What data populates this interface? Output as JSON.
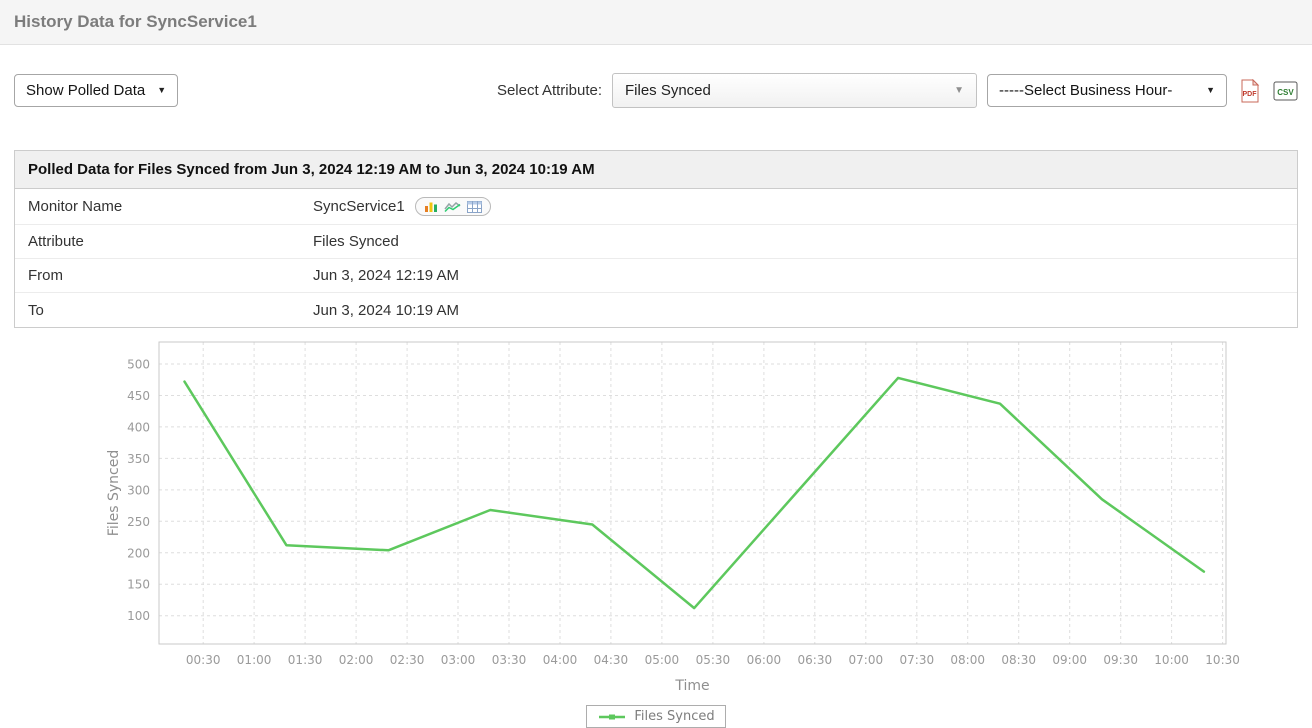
{
  "page": {
    "title": "History Data for SyncService1"
  },
  "toolbar": {
    "data_mode_select": {
      "value": "Show Polled Data"
    },
    "attribute_label": "Select Attribute:",
    "attribute_select": {
      "value": "Files Synced"
    },
    "business_hour_select": {
      "value": "-----Select Business Hour-"
    },
    "icons": {
      "pdf": "export-pdf",
      "csv": "export-csv"
    }
  },
  "table": {
    "header": "Polled Data for Files Synced from Jun 3, 2024 12:19 AM to Jun 3, 2024 10:19 AM",
    "rows": [
      {
        "label": "Monitor Name",
        "value": "SyncService1"
      },
      {
        "label": "Attribute",
        "value": "Files Synced"
      },
      {
        "label": "From",
        "value": "Jun 3, 2024 12:19 AM"
      },
      {
        "label": "To",
        "value": "Jun 3, 2024 10:19 AM"
      }
    ]
  },
  "chart_data": {
    "type": "line",
    "title": "Polled Data for Files Synced from Jun 3, 2024 12:19 AM to Jun 3, 2024 10:19 AM",
    "xlabel": "Time",
    "ylabel": "Files Synced",
    "grid": "dashed",
    "legend_position": "bottom",
    "x_ticks": [
      "00:30",
      "01:00",
      "01:30",
      "02:00",
      "02:30",
      "03:00",
      "03:30",
      "04:00",
      "04:30",
      "05:00",
      "05:30",
      "06:00",
      "06:30",
      "07:00",
      "07:30",
      "08:00",
      "08:30",
      "09:00",
      "09:30",
      "10:00",
      "10:30"
    ],
    "x_tick_minutes": [
      30,
      60,
      90,
      120,
      150,
      180,
      210,
      240,
      270,
      300,
      330,
      360,
      390,
      420,
      450,
      480,
      510,
      540,
      570,
      600,
      630
    ],
    "xlim_minutes": [
      4,
      632
    ],
    "y_ticks": [
      100,
      150,
      200,
      250,
      300,
      350,
      400,
      450,
      500
    ],
    "ylim": [
      55,
      535
    ],
    "series": [
      {
        "name": "Files Synced",
        "color": "#5dc85d",
        "x_minutes": [
          19,
          79,
          139,
          199,
          259,
          319,
          379,
          439,
          499,
          559,
          619
        ],
        "values": [
          472,
          212,
          204,
          268,
          245,
          112,
          295,
          478,
          437,
          285,
          170
        ]
      }
    ]
  }
}
